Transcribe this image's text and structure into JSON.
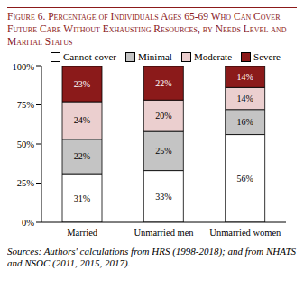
{
  "chart_data": {
    "type": "bar",
    "title": "Figure 6. Percentage of Individuals Ages 65-69 Who Can Cover Future Care Without Exhausting Resources, by Needs Level and Marital Status",
    "annotations": [
      "Sources: Authors' calculations from HRS (1998-2018); and from NHATS and NSOC (2011, 2015, 2017)."
    ],
    "categories": [
      "Married",
      "Unmarried men",
      "Unmarried women"
    ],
    "series": [
      {
        "name": "Cannot cover",
        "color": "#ffffff",
        "values": [
          31,
          33,
          56
        ],
        "value_labels": [
          "31%",
          "33%",
          "56%"
        ]
      },
      {
        "name": "Minimal",
        "color": "#c4c4c4",
        "values": [
          22,
          25,
          16
        ],
        "value_labels": [
          "22%",
          "25%",
          "16%"
        ]
      },
      {
        "name": "Moderate",
        "color": "#ebcfcf",
        "values": [
          24,
          20,
          14
        ],
        "value_labels": [
          "24%",
          "20%",
          "14%"
        ]
      },
      {
        "name": "Severe",
        "color": "#8b1a1a",
        "values": [
          23,
          22,
          14
        ],
        "value_labels": [
          "23%",
          "22%",
          "14%"
        ]
      }
    ],
    "ylim": [
      0,
      100
    ],
    "yticks": [
      {
        "value": 0,
        "label": "0%"
      },
      {
        "value": 25,
        "label": "25%"
      },
      {
        "value": 50,
        "label": "50%"
      },
      {
        "value": 75,
        "label": "75%"
      },
      {
        "value": 100,
        "label": "100%"
      }
    ],
    "stacked": true,
    "data_labels": true,
    "grid": false,
    "legend": "top"
  }
}
